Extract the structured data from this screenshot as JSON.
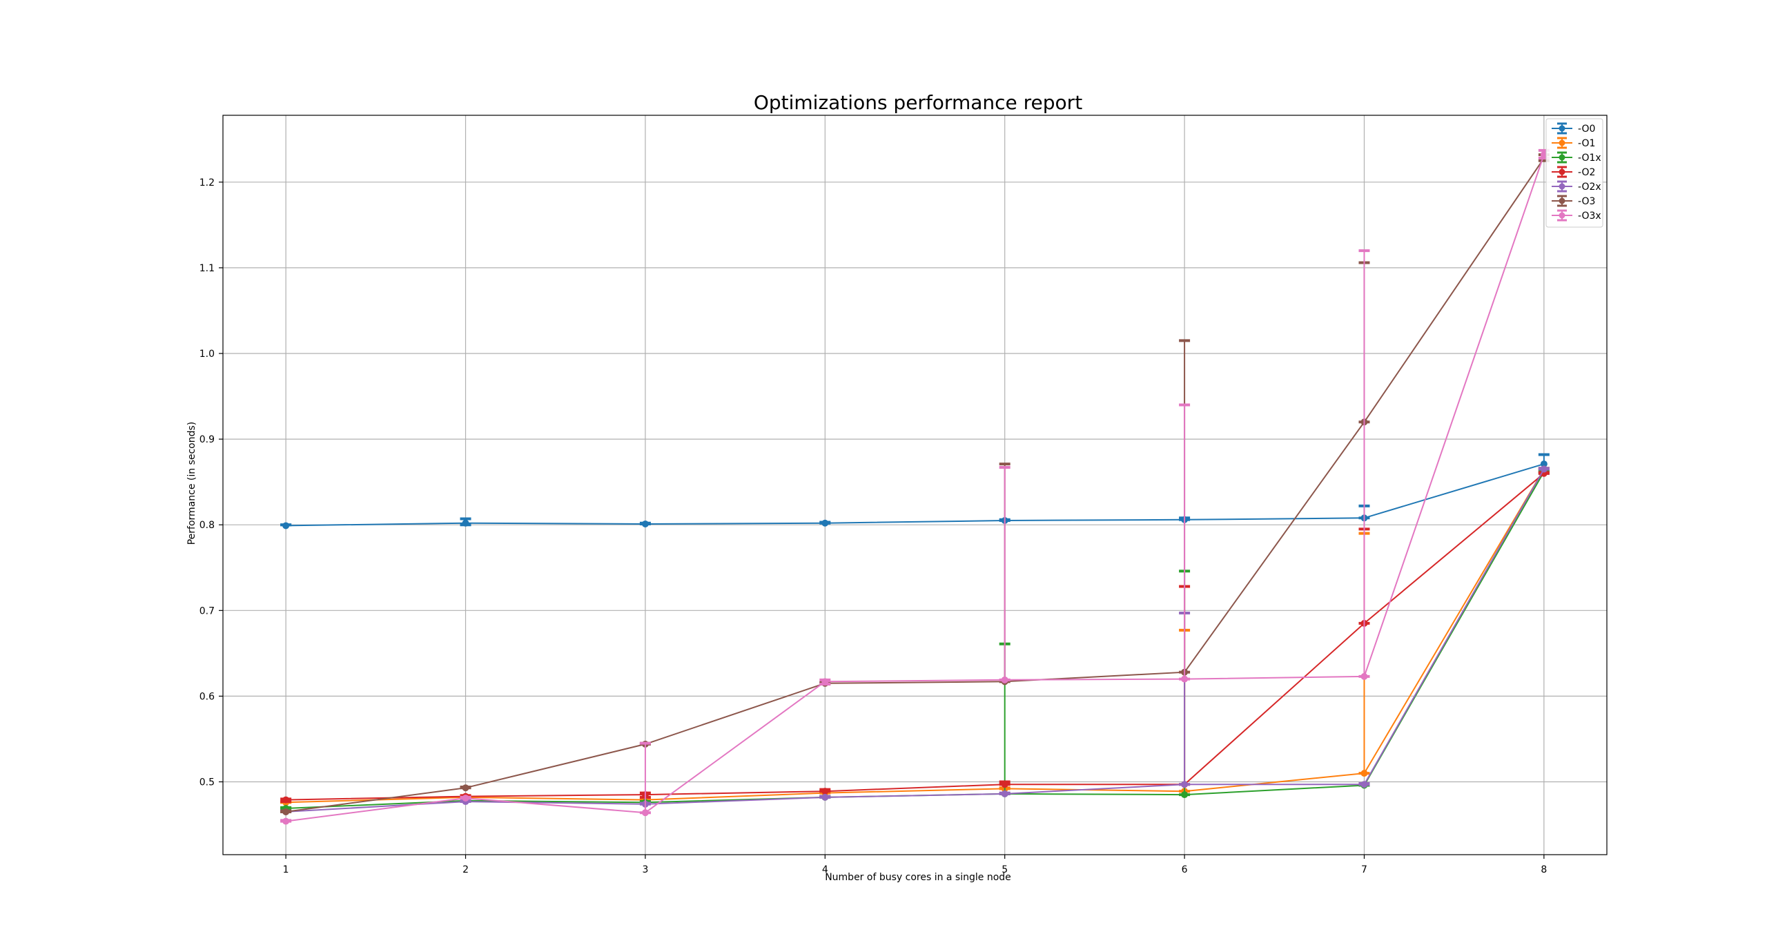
{
  "chart_data": {
    "type": "line",
    "title": "Optimizations performance report",
    "xlabel": "Number of busy cores in a single node",
    "ylabel": "Performance (in seconds)",
    "x": [
      1,
      2,
      3,
      4,
      5,
      6,
      7,
      8
    ],
    "xlim": [
      0.65,
      8.35
    ],
    "ylim": [
      0.415,
      1.278
    ],
    "x_ticks": [
      1,
      2,
      3,
      4,
      5,
      6,
      7,
      8
    ],
    "y_ticks": [
      0.5,
      0.6,
      0.7,
      0.8,
      0.9,
      1.0,
      1.1,
      1.2
    ],
    "y_tick_labels": [
      "0.5",
      "0.6",
      "0.7",
      "0.8",
      "0.9",
      "1.0",
      "1.1",
      "1.2"
    ],
    "grid": true,
    "legend_position": "top-right",
    "series": [
      {
        "name": "-O0",
        "color": "#1f77b4",
        "values": [
          0.799,
          0.802,
          0.801,
          0.802,
          0.805,
          0.806,
          0.808,
          0.871
        ],
        "err_low": [
          0.8,
          0.8,
          0.801,
          0.802,
          0.805,
          0.806,
          0.808,
          0.86
        ],
        "err_high": [
          0.8,
          0.807,
          0.802,
          0.803,
          0.806,
          0.808,
          0.822,
          0.882
        ]
      },
      {
        "name": "-O1",
        "color": "#ff7f0e",
        "values": [
          0.476,
          0.482,
          0.479,
          0.487,
          0.492,
          0.489,
          0.51,
          0.865
        ],
        "err_low": [
          0.476,
          0.48,
          0.479,
          0.487,
          0.492,
          0.489,
          0.51,
          0.865
        ],
        "err_high": [
          0.476,
          0.484,
          0.48,
          0.488,
          0.493,
          0.677,
          0.79,
          0.866
        ]
      },
      {
        "name": "-O1x",
        "color": "#2ca02c",
        "values": [
          0.469,
          0.478,
          0.476,
          0.482,
          0.486,
          0.485,
          0.496,
          0.862
        ],
        "err_low": [
          0.469,
          0.478,
          0.476,
          0.482,
          0.486,
          0.485,
          0.496,
          0.862
        ],
        "err_high": [
          0.47,
          0.479,
          0.477,
          0.483,
          0.661,
          0.746,
          0.498,
          0.863
        ]
      },
      {
        "name": "-O2",
        "color": "#d62728",
        "values": [
          0.479,
          0.483,
          0.485,
          0.489,
          0.497,
          0.497,
          0.685,
          0.86
        ],
        "err_low": [
          0.477,
          0.483,
          0.482,
          0.489,
          0.497,
          0.497,
          0.685,
          0.86
        ],
        "err_high": [
          0.48,
          0.484,
          0.487,
          0.491,
          0.5,
          0.728,
          0.795,
          0.861
        ]
      },
      {
        "name": "-O2x",
        "color": "#9467bd",
        "values": [
          0.465,
          0.477,
          0.474,
          0.482,
          0.486,
          0.497,
          0.497,
          0.865
        ],
        "err_low": [
          0.465,
          0.477,
          0.474,
          0.482,
          0.486,
          0.497,
          0.497,
          0.865
        ],
        "err_high": [
          0.466,
          0.478,
          0.475,
          0.483,
          0.487,
          0.697,
          0.498,
          0.866
        ]
      },
      {
        "name": "-O3",
        "color": "#8c564b",
        "values": [
          0.465,
          0.493,
          0.544,
          0.615,
          0.617,
          0.628,
          0.92,
          1.228
        ],
        "err_low": [
          0.465,
          0.493,
          0.544,
          0.615,
          0.617,
          0.628,
          0.92,
          1.225
        ],
        "err_high": [
          0.466,
          0.494,
          0.545,
          0.616,
          0.871,
          1.015,
          1.106,
          1.232
        ]
      },
      {
        "name": "-O3x",
        "color": "#e377c2",
        "values": [
          0.454,
          0.481,
          0.464,
          0.617,
          0.619,
          0.62,
          0.623,
          1.232
        ],
        "err_low": [
          0.454,
          0.481,
          0.464,
          0.614,
          0.619,
          0.62,
          0.623,
          1.228
        ],
        "err_high": [
          0.455,
          0.482,
          0.545,
          0.619,
          0.867,
          0.94,
          1.12,
          1.237
        ]
      }
    ]
  }
}
